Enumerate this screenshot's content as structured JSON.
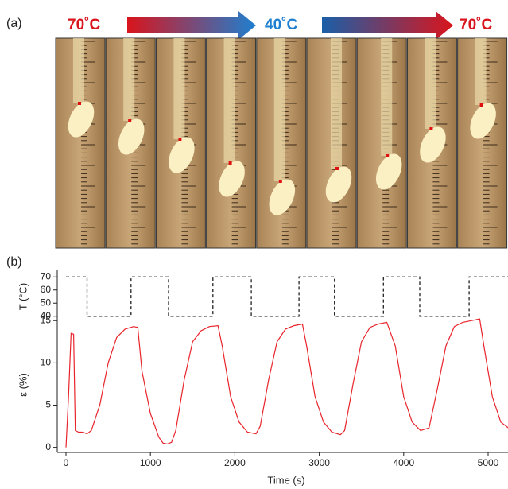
{
  "panel_a": {
    "label": "(a)",
    "temp_start": "70˚C",
    "temp_mid": "40˚C",
    "temp_end": "70˚C"
  },
  "panel_b": {
    "label": "(b)"
  },
  "chart_data": [
    {
      "type": "line",
      "y_label": "T (°C)",
      "xlim": [
        0,
        5240
      ],
      "ylim": [
        35,
        75
      ],
      "yticks": [
        40,
        50,
        60,
        70
      ],
      "series": [
        {
          "color": "#222222",
          "x": [
            0,
            250,
            250,
            770,
            770,
            1215,
            1215,
            1740,
            1740,
            2195,
            2195,
            2760,
            2760,
            3180,
            3180,
            3760,
            3760,
            4190,
            4190,
            4775,
            4775,
            5240
          ],
          "values": [
            70,
            70,
            40,
            40,
            70,
            70,
            40,
            40,
            70,
            70,
            40,
            40,
            70,
            70,
            40,
            40,
            70,
            70,
            40,
            40,
            70,
            70
          ]
        }
      ]
    },
    {
      "type": "line",
      "y_label": "ε (%)",
      "x_label": "Time (s)",
      "xlim": [
        0,
        5240
      ],
      "ylim": [
        -0.6,
        15.4
      ],
      "xticks": [
        0,
        1000,
        2000,
        3000,
        4000,
        5000
      ],
      "yticks": [
        0,
        5,
        10,
        15
      ],
      "series": [
        {
          "color": "#e8242b",
          "x": [
            0,
            30,
            60,
            90,
            110,
            150,
            200,
            250,
            300,
            400,
            500,
            600,
            700,
            800,
            850,
            900,
            1000,
            1100,
            1150,
            1200,
            1250,
            1300,
            1400,
            1500,
            1600,
            1700,
            1800,
            1850,
            1950,
            2050,
            2150,
            2250,
            2300,
            2400,
            2500,
            2600,
            2700,
            2800,
            2850,
            2950,
            3050,
            3150,
            3250,
            3300,
            3400,
            3500,
            3600,
            3700,
            3800,
            3900,
            4000,
            4100,
            4200,
            4300,
            4400,
            4500,
            4600,
            4700,
            4800,
            4900,
            4950,
            5050,
            5150,
            5240
          ],
          "values": [
            0,
            6,
            13.5,
            13.4,
            2,
            1.8,
            1.8,
            1.6,
            2,
            5,
            10,
            13,
            14,
            14.3,
            14.2,
            9,
            4,
            1.2,
            0.5,
            0.4,
            0.6,
            2,
            8,
            12.5,
            13.8,
            14.3,
            14.4,
            12,
            6,
            3,
            1.8,
            1.6,
            2.5,
            8,
            12.5,
            14,
            14.4,
            14.6,
            12,
            6,
            3,
            1.8,
            1.5,
            2,
            7.5,
            12.5,
            14.2,
            14.6,
            14.8,
            12,
            6,
            3,
            2,
            2.3,
            7,
            12,
            14.3,
            14.8,
            15,
            15.2,
            12,
            6,
            3,
            2.3
          ]
        }
      ]
    }
  ]
}
